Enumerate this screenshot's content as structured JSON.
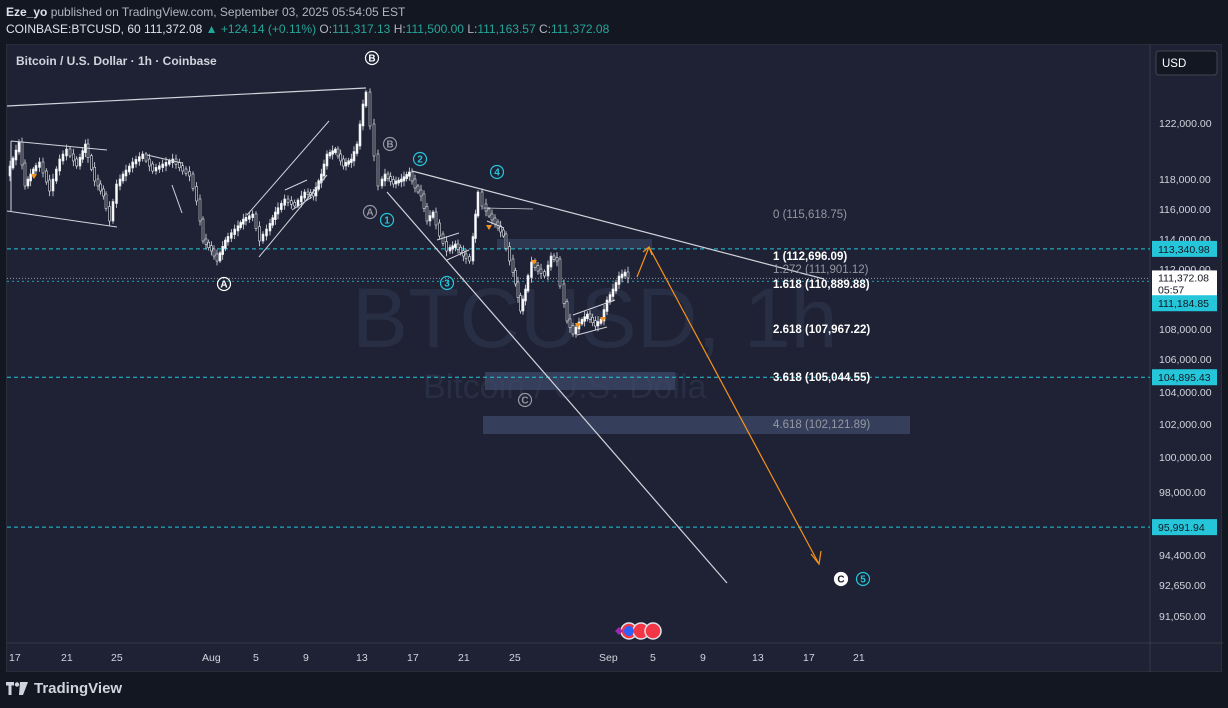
{
  "header": {
    "publisher": "Eze_yo",
    "publish_text": " published on TradingView.com, September 03, 2025 05:54:05 EST",
    "symbol": "COINBASE:BTCUSD, 60",
    "last": "111,372.08",
    "change": "▲ +124.14 (+0.11%)",
    "o_label": "O:",
    "o": "111,317.13",
    "h_label": "H:",
    "h": "111,500.00",
    "l_label": "L:",
    "l": "111,163.57",
    "c_label": "C:",
    "c": "111,372.08"
  },
  "chart": {
    "title": "Bitcoin / U.S. Dollar · 1h · Coinbase",
    "currency": "USD",
    "watermark_main": "BTCUSD, 1h",
    "watermark_sub": "Bitcoin / U.S. Dolla",
    "colors": {
      "background": "#1e2234",
      "line_white": "#d1d4dc",
      "orange": "#f7931a",
      "cyan": "#26c6da",
      "dashed_cyan": "#26c6da",
      "box": "#3d4a68",
      "price_tag_cyan": "#26c6da",
      "current_tag": "#ffffff"
    }
  },
  "chart_data": {
    "type": "line",
    "y_ticks": [
      "122,000.00",
      "118,000.00",
      "116,000.00",
      "114,000.00",
      "112,000.00",
      "108,000.00",
      "106,000.00",
      "104,000.00",
      "102,000.00",
      "100,000.00",
      "98,000.00",
      "94,400.00",
      "92,650.00",
      "91,050.00"
    ],
    "y_tick_values": [
      122000,
      118000,
      116000,
      114000,
      112000,
      108000,
      106000,
      104000,
      102000,
      100000,
      98000,
      94400,
      92650,
      91050
    ],
    "x_ticks": [
      "17",
      "21",
      "25",
      "Aug",
      "5",
      "9",
      "13",
      "17",
      "21",
      "25",
      "Sep",
      "5",
      "9",
      "13",
      "17",
      "21"
    ],
    "price_tags": [
      {
        "label": "113,340.98",
        "value": 113340.98,
        "style": "cyan"
      },
      {
        "label": "111,372.08",
        "sub": "05:57",
        "value": 111372.08,
        "style": "current"
      },
      {
        "label": "111,184.85",
        "value": 111184.85,
        "style": "cyan"
      },
      {
        "label": "104,895.43",
        "value": 104895.43,
        "style": "cyan"
      },
      {
        "label": "95,991.94",
        "value": 95991.94,
        "style": "cyan"
      }
    ],
    "fib_levels": [
      {
        "label": "0 (115,618.75)",
        "value": 115618.75,
        "bold": false
      },
      {
        "label": "1 (112,696.09)",
        "value": 112696.09,
        "bold": true
      },
      {
        "label": "1.272 (111,901.12)",
        "value": 111901.12,
        "bold": false
      },
      {
        "label": "1.618 (110,889.88)",
        "value": 110889.88,
        "bold": true
      },
      {
        "label": "2.618 (107,967.22)",
        "value": 107967.22,
        "bold": true
      },
      {
        "label": "3.618 (105,044.55)",
        "value": 105044.55,
        "bold": true
      },
      {
        "label": "4.618 (102,121.89)",
        "value": 102121.89,
        "bold": false
      }
    ],
    "wave_labels": [
      {
        "label": "B",
        "style": "white-outline"
      },
      {
        "label": "B",
        "style": "gray-outline"
      },
      {
        "label": "A",
        "style": "white-outline"
      },
      {
        "label": "A",
        "style": "gray-outline"
      },
      {
        "label": "1",
        "style": "cyan"
      },
      {
        "label": "2",
        "style": "cyan"
      },
      {
        "label": "3",
        "style": "cyan"
      },
      {
        "label": "4",
        "style": "cyan"
      },
      {
        "label": "C",
        "style": "gray-outline"
      },
      {
        "label": "C",
        "style": "white-solid"
      },
      {
        "label": "5",
        "style": "cyan"
      }
    ]
  },
  "footer": {
    "brand": "TradingView"
  }
}
